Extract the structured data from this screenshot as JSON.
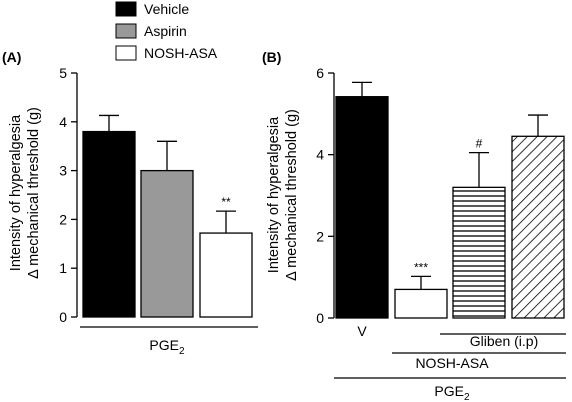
{
  "legend": [
    {
      "label": "Vehicle",
      "fill": "#000000",
      "pattern": "solid"
    },
    {
      "label": "Aspirin",
      "fill": "#999999",
      "pattern": "solid"
    },
    {
      "label": "NOSH-ASA",
      "fill": "#ffffff",
      "pattern": "solid"
    }
  ],
  "chart_data": [
    {
      "type": "bar",
      "panel_label": "(A)",
      "ylabel_line1": "Intensity of hyperalgesia",
      "ylabel_line2": "Δ mechanical threshold (g)",
      "ylim": [
        0,
        5
      ],
      "yticks": [
        "0",
        "1",
        "2",
        "3",
        "4",
        "5"
      ],
      "grid": false,
      "series": [
        {
          "name": "Vehicle",
          "value": 3.8,
          "error": 0.33,
          "fill": "#000000",
          "pattern": "solid",
          "significance": ""
        },
        {
          "name": "Aspirin",
          "value": 3.0,
          "error": 0.6,
          "fill": "#999999",
          "pattern": "solid",
          "significance": ""
        },
        {
          "name": "NOSH-ASA",
          "value": 1.72,
          "error": 0.45,
          "fill": "#ffffff",
          "pattern": "solid",
          "significance": "**"
        }
      ],
      "group_label": {
        "base": "PGE",
        "sub": "2"
      }
    },
    {
      "type": "bar",
      "panel_label": "(B)",
      "ylabel_line1": "Intensity of hyperalgesia",
      "ylabel_line2": "Δ mechanical threshold (g)",
      "ylim": [
        0,
        6
      ],
      "yticks": [
        "0",
        "2",
        "4",
        "6"
      ],
      "grid": false,
      "bars": [
        {
          "value": 5.42,
          "error": 0.35,
          "fill": "#000000",
          "pattern": "solid",
          "significance": "",
          "tick_label": "V"
        },
        {
          "value": 0.7,
          "error": 0.32,
          "fill": "#ffffff",
          "pattern": "solid",
          "significance": "***",
          "tick_label": ""
        },
        {
          "value": 3.2,
          "error": 0.85,
          "fill": "#ffffff",
          "pattern": "horizontal",
          "significance": "#",
          "tick_label": ""
        },
        {
          "value": 4.45,
          "error": 0.52,
          "fill": "#ffffff",
          "pattern": "diagonal",
          "significance": "",
          "tick_label": ""
        }
      ],
      "group_labels": {
        "gliben": "Gliben (i.p)",
        "nosh": "NOSH-ASA",
        "pge_base": "PGE",
        "pge_sub": "2"
      }
    }
  ]
}
